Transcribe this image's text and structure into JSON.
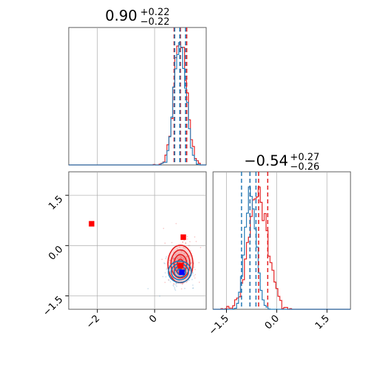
{
  "chart_data": {
    "type": "corner",
    "parameters": [
      {
        "title_value": "0.90",
        "title_plus": "+0.22",
        "title_minus": "−0.22"
      },
      {
        "title_value": "−0.54",
        "title_plus": "+0.27",
        "title_minus": "−0.26"
      }
    ],
    "axes": {
      "p0_range": [
        -3.0,
        1.8
      ],
      "p1_range": [
        -1.9,
        2.2
      ],
      "p0_ticks": [
        -2,
        0
      ],
      "p0_tick_labels": [
        "−2",
        "0"
      ],
      "p1_ticks": [
        -1.5,
        0.0,
        1.5
      ],
      "p1_tick_labels": [
        "−1.5",
        "0.0",
        "1.5"
      ],
      "grid": true
    },
    "series": [
      {
        "color": "#e41a1c",
        "quantiles_p0": [
          0.68,
          0.9,
          1.12
        ],
        "quantiles_p1": [
          -0.8,
          -0.54,
          -0.27
        ],
        "contour_center": [
          0.9,
          -0.55
        ],
        "contour_sigma": [
          0.22,
          0.28
        ]
      },
      {
        "color": "#1f77b4",
        "quantiles_p0": [
          0.7,
          0.88,
          1.08
        ],
        "quantiles_p1": [
          -1.05,
          -0.8,
          -0.62
        ],
        "contour_center": [
          0.88,
          -0.78
        ],
        "contour_sigma": [
          0.2,
          0.16
        ]
      }
    ],
    "markers": [
      {
        "x": -2.2,
        "y": 0.65,
        "color": "#ff0000"
      },
      {
        "x": 1.0,
        "y": 0.25,
        "color": "#ff0000"
      },
      {
        "x": 0.9,
        "y": -0.6,
        "color": "#ff0000"
      },
      {
        "x": 0.95,
        "y": -0.8,
        "color": "#0000ff"
      }
    ]
  }
}
